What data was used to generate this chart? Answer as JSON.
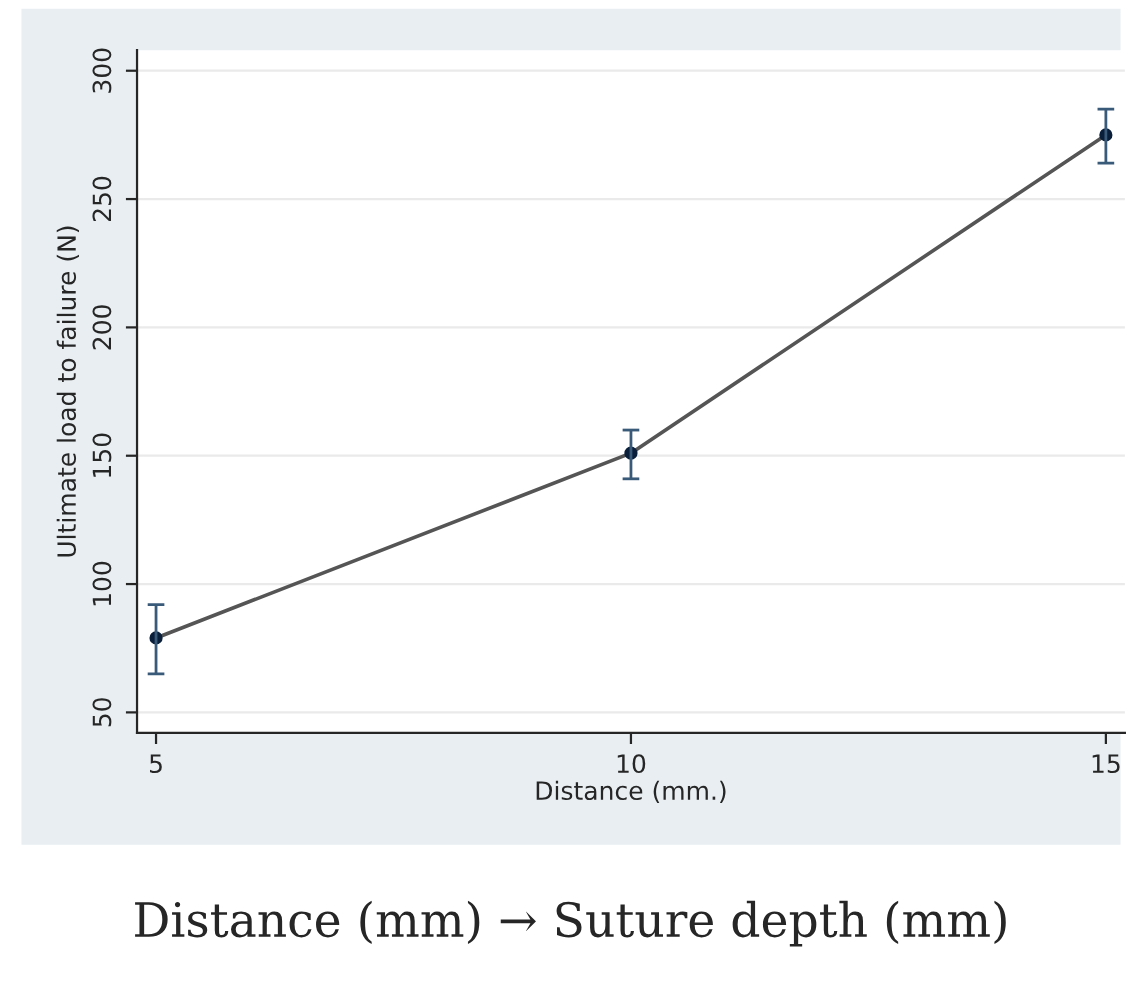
{
  "chart_data": {
    "type": "line",
    "xlabel": "Distance (mm.)",
    "ylabel": "Ultimate load to failure (N)",
    "x": [
      5,
      10,
      15
    ],
    "values": [
      79,
      151,
      275
    ],
    "color": "#555555",
    "errors": [
      [
        65,
        92
      ],
      [
        141,
        160
      ],
      [
        264,
        285
      ]
    ],
    "xlim": [
      4.8,
      15.2
    ],
    "ylim": [
      42,
      308
    ],
    "xticks": [
      5,
      10,
      15
    ],
    "yticks": [
      50,
      100,
      150,
      200,
      250,
      300
    ],
    "grid": "y",
    "marker": "circle",
    "line_style": "solid",
    "legend": false,
    "annotations": [
      "Distance (mm) → Suture depth (mm)"
    ]
  }
}
